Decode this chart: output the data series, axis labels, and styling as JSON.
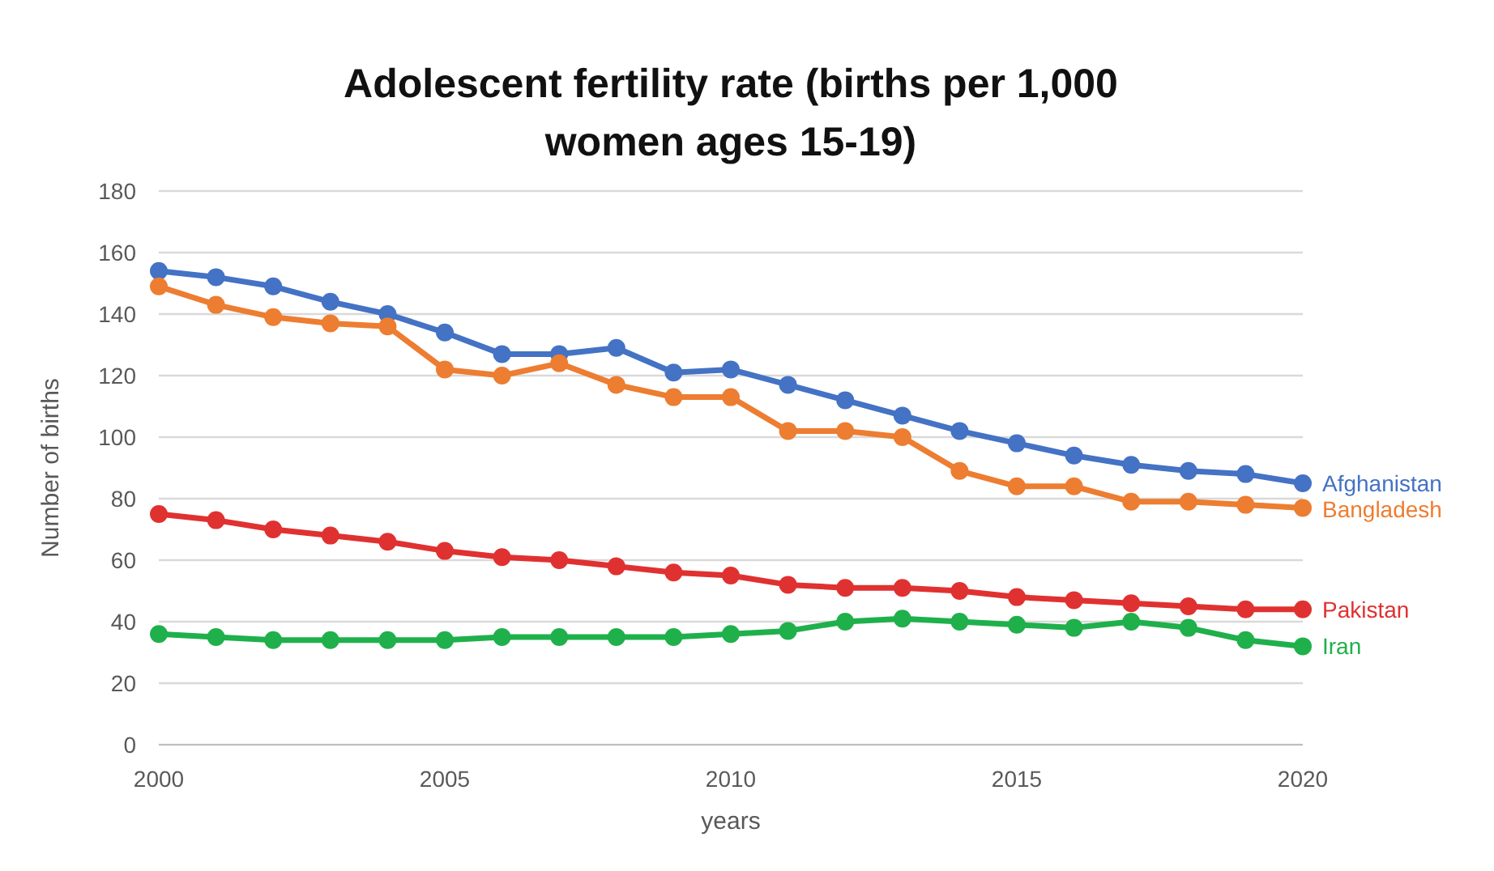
{
  "chart_data": {
    "type": "line",
    "title": "Adolescent fertility rate (births per 1,000 women ages 15-19)",
    "xlabel": "years",
    "ylabel": "Number of births",
    "x": [
      2000,
      2001,
      2002,
      2003,
      2004,
      2005,
      2006,
      2007,
      2008,
      2009,
      2010,
      2011,
      2012,
      2013,
      2014,
      2015,
      2016,
      2017,
      2018,
      2019,
      2020
    ],
    "series": [
      {
        "name": "Afghanistan",
        "color": "#4472c4",
        "values": [
          154,
          152,
          149,
          144,
          140,
          134,
          127,
          127,
          129,
          121,
          122,
          117,
          112,
          107,
          102,
          98,
          94,
          91,
          89,
          88,
          85
        ]
      },
      {
        "name": "Bangladesh",
        "color": "#ed7d31",
        "values": [
          149,
          143,
          139,
          137,
          136,
          122,
          120,
          124,
          117,
          113,
          113,
          102,
          102,
          100,
          89,
          84,
          84,
          79,
          79,
          78,
          77
        ]
      },
      {
        "name": "Pakistan",
        "color": "#e03131",
        "values": [
          75,
          73,
          70,
          68,
          66,
          63,
          61,
          60,
          58,
          56,
          55,
          52,
          51,
          51,
          50,
          48,
          47,
          46,
          45,
          44,
          44
        ]
      },
      {
        "name": "Iran",
        "color": "#1fb04b",
        "values": [
          36,
          35,
          34,
          34,
          34,
          34,
          35,
          35,
          35,
          35,
          36,
          37,
          40,
          41,
          40,
          39,
          38,
          40,
          38,
          34,
          32
        ]
      }
    ],
    "xlim": [
      2000,
      2020
    ],
    "xticks": [
      2000,
      2005,
      2010,
      2015,
      2020
    ],
    "ylim": [
      0,
      180
    ],
    "yticks": [
      0,
      20,
      40,
      60,
      80,
      100,
      120,
      140,
      160,
      180
    ],
    "grid": "y",
    "marker": "circle",
    "line_style": "solid"
  }
}
